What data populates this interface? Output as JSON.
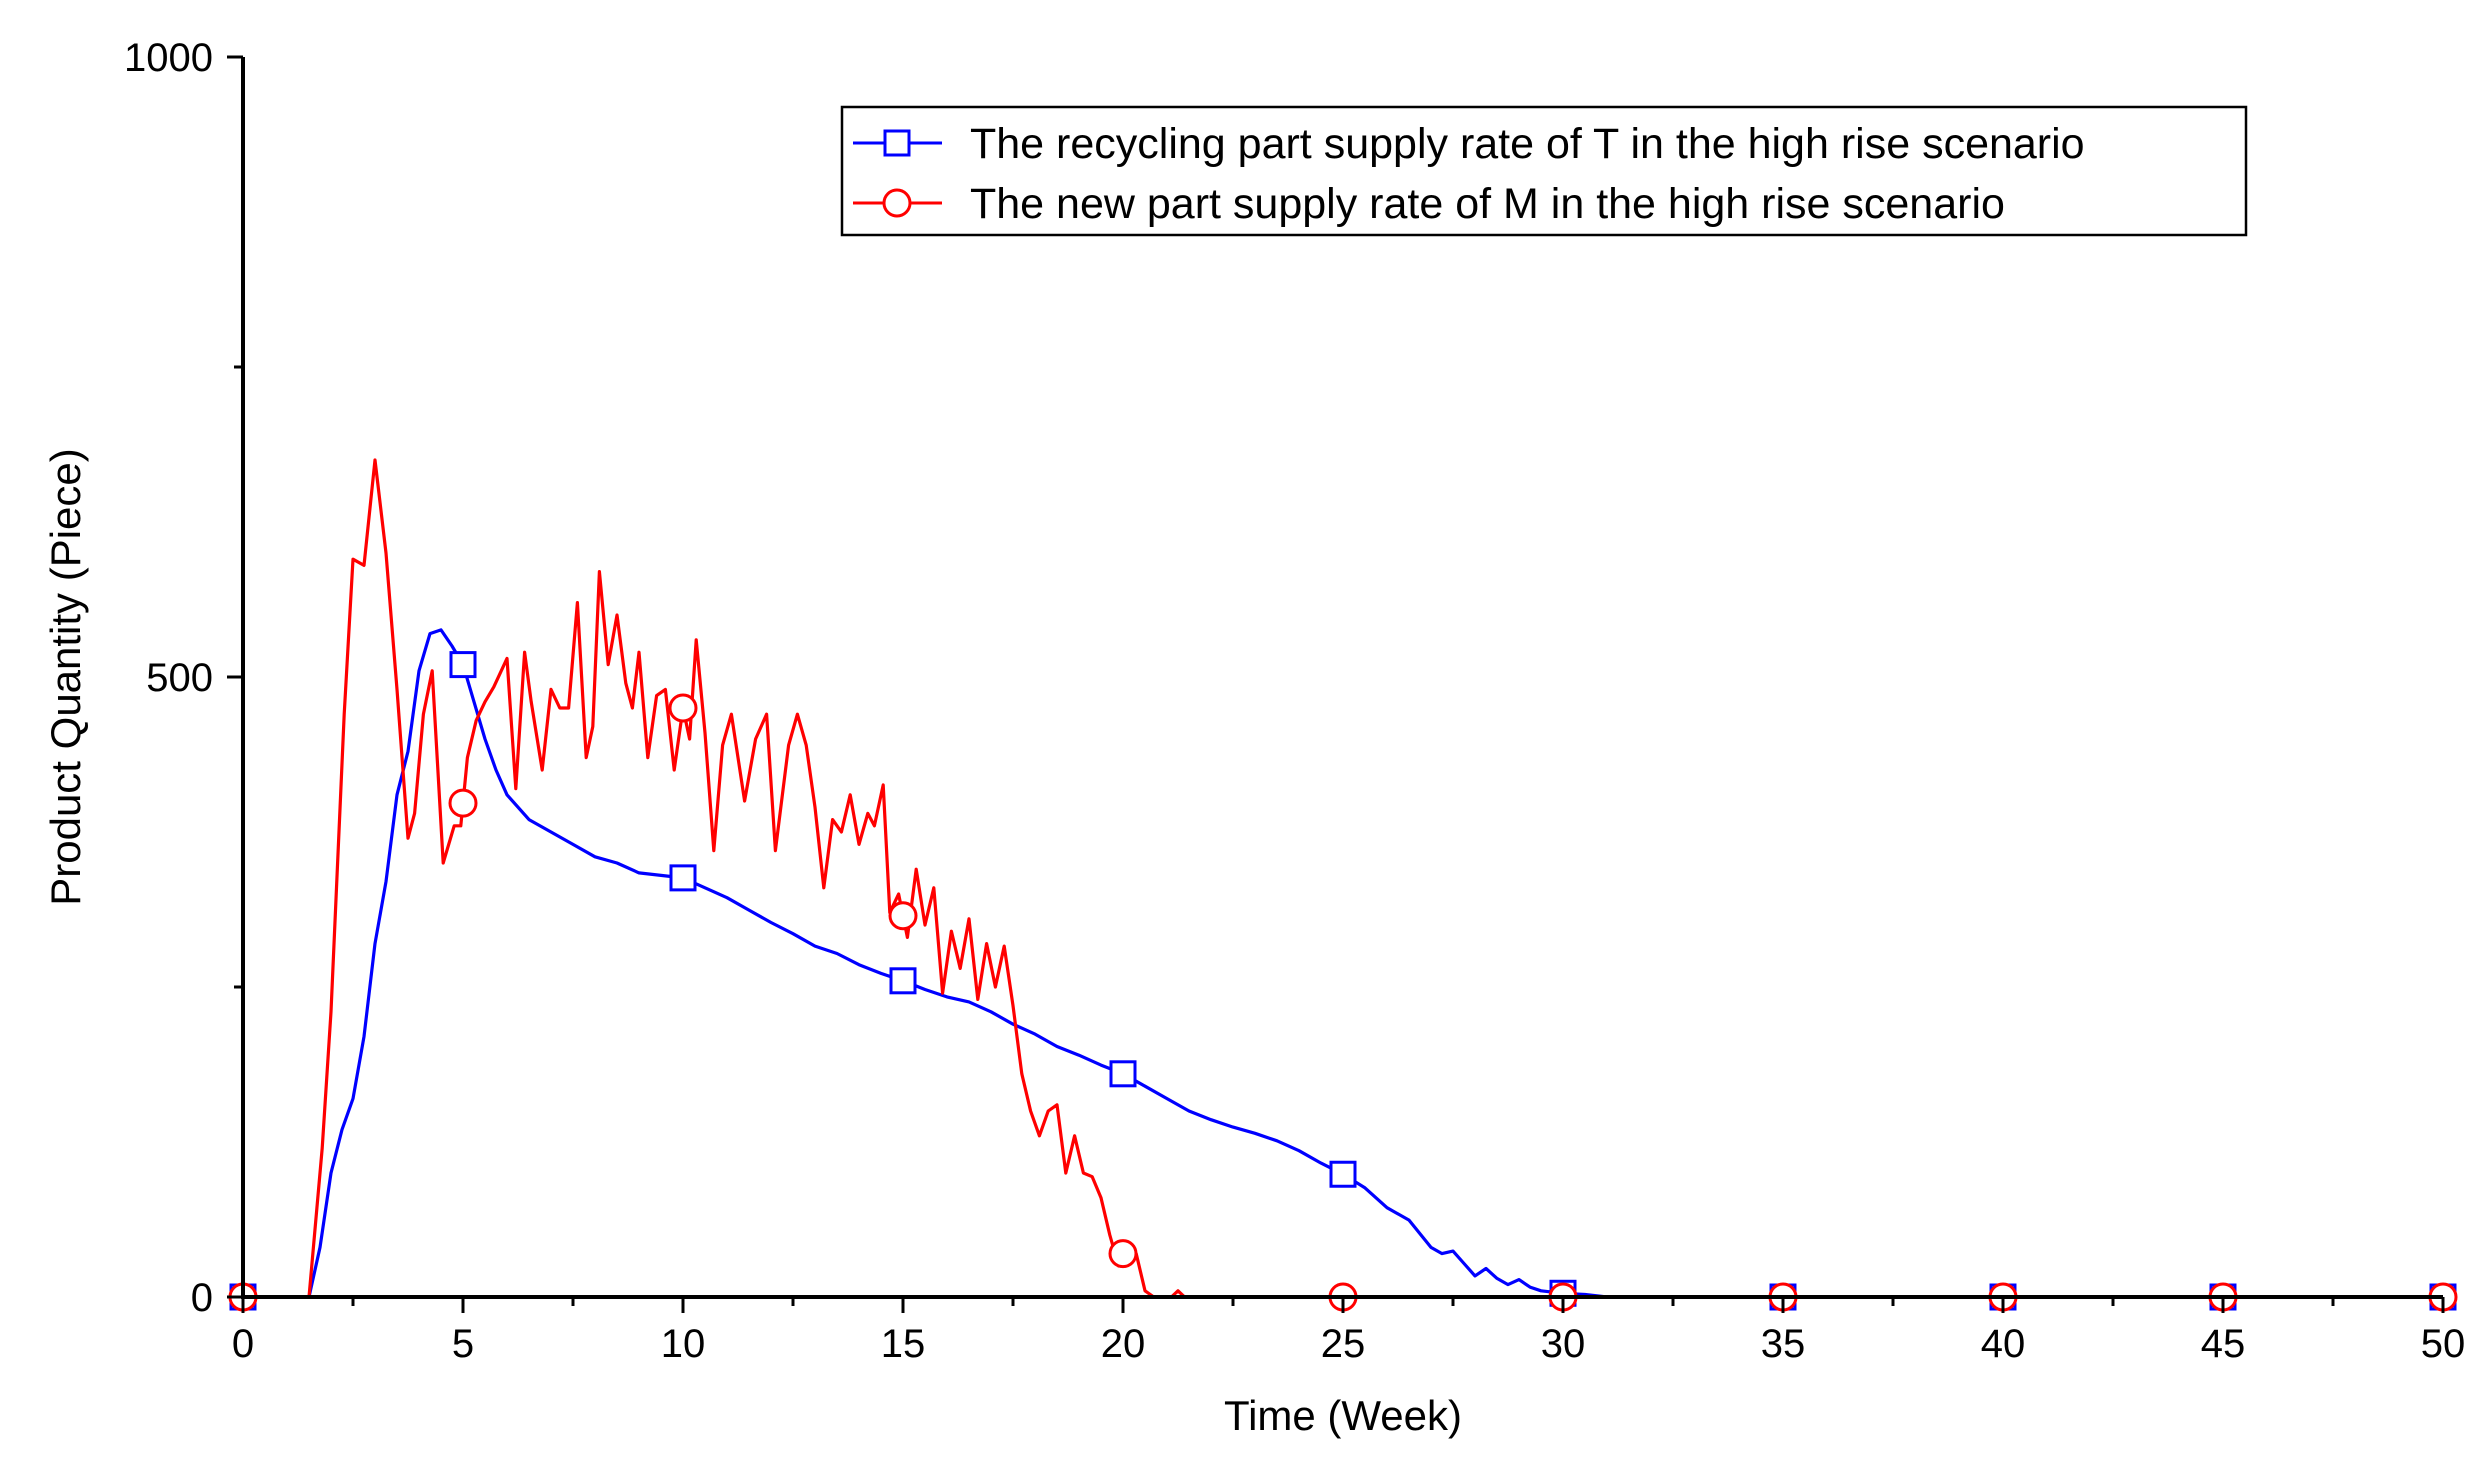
{
  "chart_data": {
    "type": "line",
    "title": "",
    "xlabel": "Time (Week)",
    "ylabel": "Product Quantity (Piece)",
    "xlim": [
      0,
      50
    ],
    "ylim": [
      0,
      1000
    ],
    "x_ticks": [
      "0",
      "5",
      "10",
      "15",
      "20",
      "25",
      "30",
      "35",
      "40",
      "45",
      "50"
    ],
    "y_ticks": [
      "0",
      "500",
      "1000"
    ],
    "legend_position": "top-right",
    "series": [
      {
        "name": "The recycling part supply rate of T in the high rise scenario",
        "color": "#0000ff",
        "marker": "square",
        "marker_x": [
          0,
          5,
          10,
          15,
          20,
          25,
          30,
          35,
          40,
          45,
          50
        ],
        "x": [
          0,
          1.5,
          1.75,
          2.0,
          2.25,
          2.5,
          2.75,
          3.0,
          3.25,
          3.5,
          3.75,
          4.0,
          4.25,
          4.5,
          4.75,
          5.0,
          5.25,
          5.5,
          5.75,
          6.0,
          6.5,
          7.0,
          7.5,
          8.0,
          8.5,
          9.0,
          9.5,
          10.0,
          10.5,
          11.0,
          11.5,
          12.0,
          12.5,
          13.0,
          13.5,
          14.0,
          14.5,
          15.0,
          15.5,
          16.0,
          16.5,
          17.0,
          17.5,
          18.0,
          18.5,
          19.0,
          19.5,
          20.0,
          20.5,
          21.0,
          21.5,
          22.0,
          22.5,
          23.0,
          23.5,
          24.0,
          24.5,
          25.0,
          25.5,
          26.0,
          26.5,
          27.0,
          27.25,
          27.5,
          27.75,
          28.0,
          28.25,
          28.5,
          28.75,
          29.0,
          29.25,
          29.5,
          30.0,
          30.5,
          31.0,
          31.5,
          35,
          40,
          45,
          50
        ],
        "y": [
          0,
          0,
          40,
          100,
          135,
          160,
          210,
          285,
          335,
          405,
          440,
          505,
          535,
          538,
          525,
          510,
          480,
          450,
          425,
          405,
          385,
          375,
          365,
          355,
          350,
          342,
          340,
          338,
          330,
          322,
          312,
          302,
          293,
          283,
          277,
          268,
          261,
          255,
          248,
          242,
          238,
          230,
          220,
          212,
          202,
          195,
          187,
          180,
          170,
          160,
          150,
          143,
          137,
          132,
          126,
          118,
          108,
          99,
          88,
          72,
          62,
          40,
          35,
          37,
          27,
          17,
          23,
          15,
          10,
          14,
          8,
          5,
          3,
          2,
          0,
          0,
          0,
          0,
          0,
          0
        ]
      },
      {
        "name": "The new part supply rate of M in the high rise scenario",
        "color": "#ff0000",
        "marker": "circle",
        "marker_x": [
          0,
          5,
          10,
          15,
          20,
          25,
          30,
          35,
          40,
          45,
          50
        ],
        "x": [
          0,
          1.5,
          1.8,
          2.0,
          2.3,
          2.5,
          2.75,
          3.0,
          3.25,
          3.5,
          3.75,
          3.9,
          4.1,
          4.3,
          4.55,
          4.8,
          4.95,
          5.1,
          5.3,
          5.5,
          5.7,
          6.0,
          6.2,
          6.4,
          6.55,
          6.8,
          7.0,
          7.2,
          7.4,
          7.6,
          7.8,
          7.95,
          8.1,
          8.3,
          8.5,
          8.7,
          8.85,
          9.0,
          9.2,
          9.4,
          9.6,
          9.8,
          10.0,
          10.15,
          10.3,
          10.5,
          10.7,
          10.9,
          11.1,
          11.4,
          11.65,
          11.9,
          12.1,
          12.4,
          12.6,
          12.8,
          13.0,
          13.2,
          13.4,
          13.6,
          13.8,
          14.0,
          14.2,
          14.35,
          14.55,
          14.7,
          14.9,
          15.1,
          15.3,
          15.5,
          15.7,
          15.9,
          16.1,
          16.3,
          16.5,
          16.7,
          16.9,
          17.1,
          17.3,
          17.5,
          17.7,
          17.9,
          18.1,
          18.3,
          18.5,
          18.7,
          18.9,
          19.1,
          19.3,
          19.5,
          19.7,
          19.9,
          20.0,
          20.15,
          20.3,
          20.5,
          20.7,
          20.9,
          21.1,
          21.25,
          21.4,
          21.6,
          21.8,
          22.0,
          22.2,
          22.4,
          22.6,
          22.8,
          23.0,
          23.2,
          23.4,
          23.6,
          24.0,
          24.4,
          24.6,
          25.0,
          30,
          35,
          40,
          45,
          50
        ],
        "y": [
          0,
          0,
          120,
          230,
          470,
          595,
          590,
          675,
          600,
          490,
          370,
          390,
          470,
          505,
          350,
          380,
          380,
          435,
          465,
          480,
          492,
          515,
          410,
          520,
          480,
          425,
          490,
          475,
          475,
          560,
          435,
          460,
          585,
          510,
          550,
          495,
          475,
          520,
          435,
          485,
          490,
          425,
          475,
          450,
          530,
          455,
          360,
          445,
          470,
          400,
          450,
          470,
          360,
          445,
          470,
          445,
          395,
          330,
          385,
          375,
          405,
          365,
          390,
          380,
          413,
          310,
          325,
          290,
          345,
          300,
          330,
          245,
          295,
          265,
          305,
          240,
          285,
          250,
          283,
          235,
          180,
          150,
          130,
          150,
          155,
          100,
          130,
          100,
          97,
          80,
          50,
          25,
          35,
          28,
          35,
          5,
          0,
          0,
          0,
          5,
          0,
          0,
          0,
          0,
          0,
          0,
          0,
          0,
          0,
          0,
          0,
          0,
          0,
          0,
          0,
          0,
          0,
          0,
          0,
          0,
          0
        ]
      }
    ]
  }
}
